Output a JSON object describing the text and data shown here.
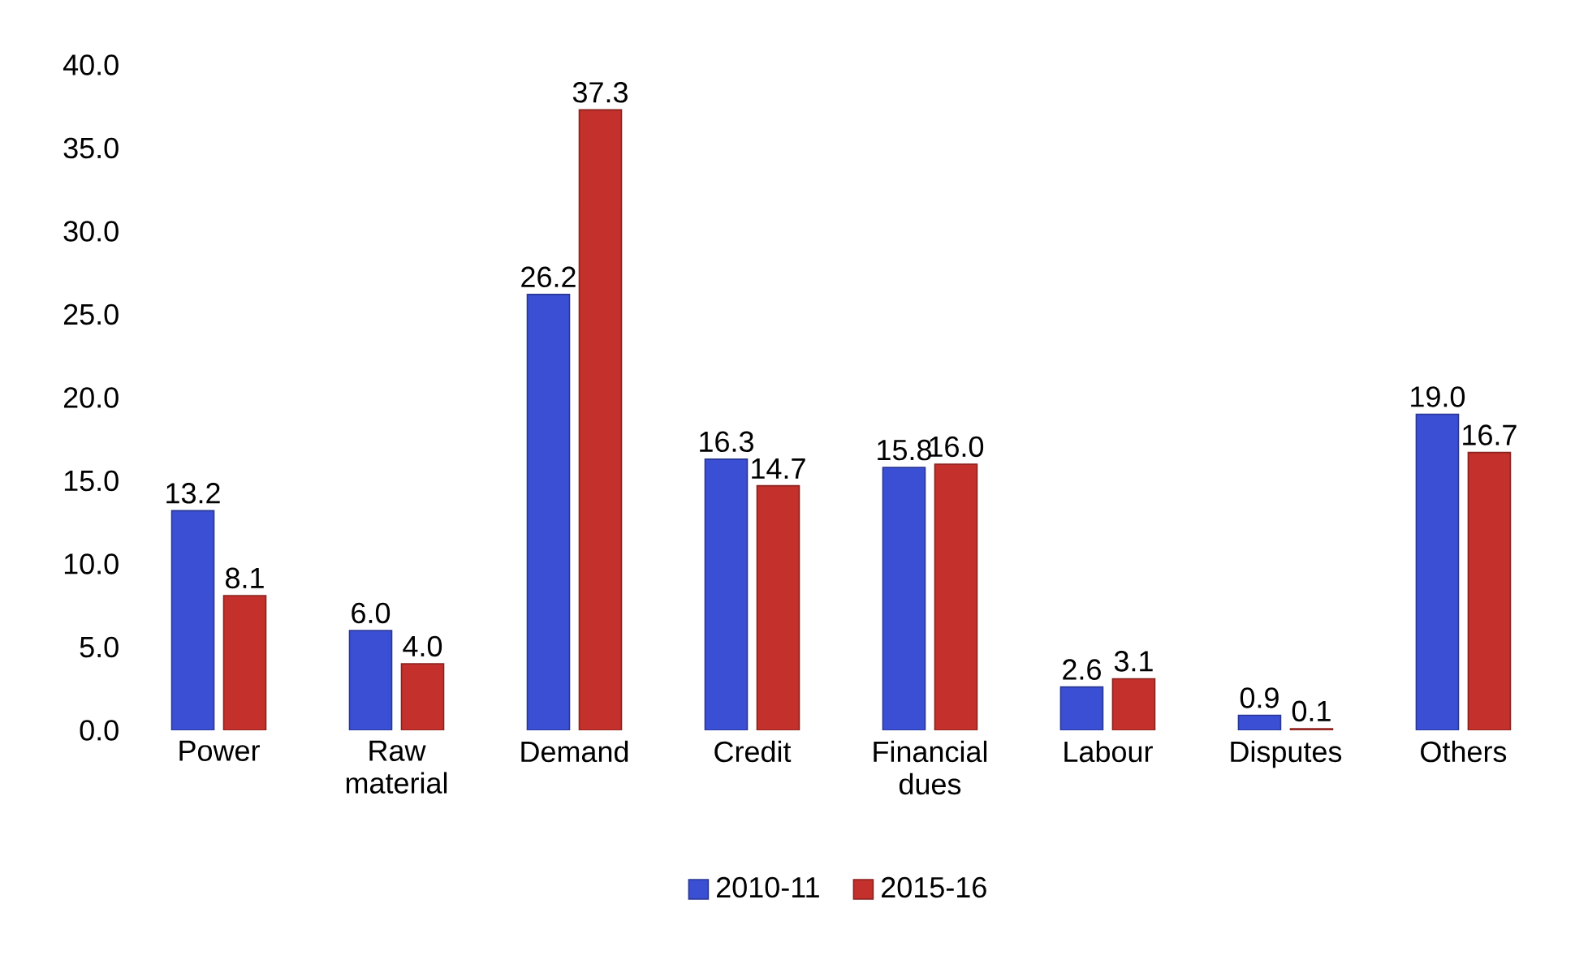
{
  "chart_data": {
    "type": "bar",
    "categories": [
      "Power",
      "Raw material",
      "Demand",
      "Credit",
      "Financial dues",
      "Labour",
      "Disputes",
      "Others"
    ],
    "series": [
      {
        "name": "2010-11",
        "color": "#3b4fd4",
        "values": [
          13.2,
          6.0,
          26.2,
          16.3,
          15.8,
          2.6,
          0.9,
          19.0
        ],
        "value_labels": [
          "13.2",
          "6.0",
          "26.2",
          "16.3",
          "15.8",
          "2.6",
          "0.9",
          "19.0"
        ]
      },
      {
        "name": "2015-16",
        "color": "#c4302b",
        "values": [
          8.1,
          4.0,
          37.3,
          14.7,
          16.0,
          3.1,
          0.1,
          16.7
        ],
        "value_labels": [
          "8.1",
          "4.0",
          "37.3",
          "14.7",
          "16.0",
          "3.1",
          "0.1",
          "16.7"
        ]
      }
    ],
    "ylim": [
      0,
      40
    ],
    "yticks": [
      {
        "value": 0,
        "label": "0.0"
      },
      {
        "value": 5,
        "label": "5.0"
      },
      {
        "value": 10,
        "label": "10.0"
      },
      {
        "value": 15,
        "label": "15.0"
      },
      {
        "value": 20,
        "label": "20.0"
      },
      {
        "value": 25,
        "label": "25.0"
      },
      {
        "value": 30,
        "label": "30.0"
      },
      {
        "value": 35,
        "label": "35.0"
      },
      {
        "value": 40,
        "label": "40.0"
      }
    ],
    "legend": "bottom",
    "grid": false
  }
}
